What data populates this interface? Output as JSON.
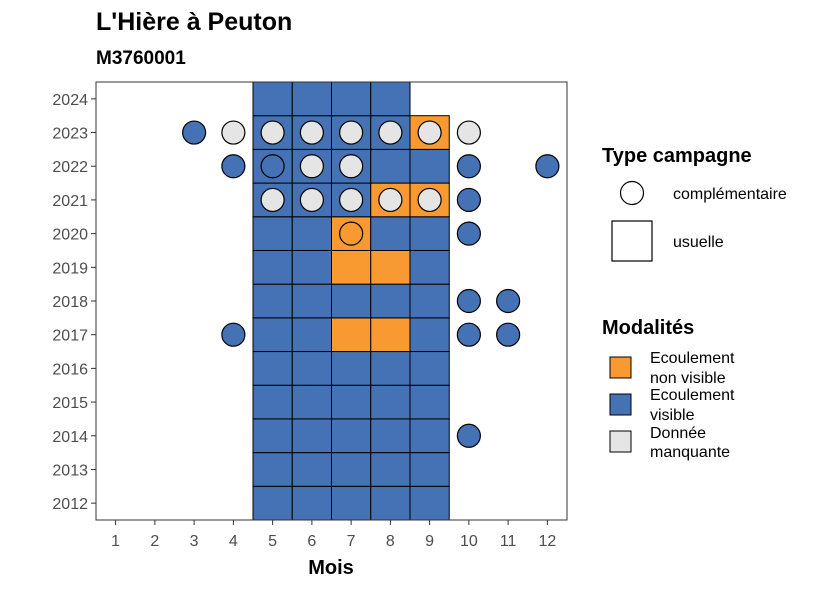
{
  "chart_data": {
    "type": "heatmap",
    "title": "L'Hière à Peuton",
    "subtitle": "M3760001",
    "xlabel": "Mois",
    "ylabel": "",
    "x_ticks": [
      "1",
      "2",
      "3",
      "4",
      "5",
      "6",
      "7",
      "8",
      "9",
      "10",
      "11",
      "12"
    ],
    "y_ticks": [
      "2012",
      "2013",
      "2014",
      "2015",
      "2016",
      "2017",
      "2018",
      "2019",
      "2020",
      "2021",
      "2022",
      "2023",
      "2024"
    ],
    "xlim": [
      0.5,
      12.5
    ],
    "ylim": [
      2011.5,
      2024.5
    ],
    "grid": false,
    "legend_position": "right",
    "colors": {
      "Ecoulement non visible": "#f89a31",
      "Ecoulement visible": "#4472b4",
      "Donnée manquante": "#e5e5e5"
    },
    "legends": {
      "shape": {
        "title": "Type campagne",
        "items": [
          {
            "label": "complémentaire",
            "shape": "circle"
          },
          {
            "label": "usuelle",
            "shape": "square"
          }
        ]
      },
      "fill": {
        "title": "Modalités",
        "items": [
          {
            "label": "Ecoulement non visible",
            "lines": [
              "Ecoulement",
              "non visible"
            ],
            "color": "#f89a31"
          },
          {
            "label": "Ecoulement visible",
            "lines": [
              "Ecoulement",
              "visible"
            ],
            "color": "#4472b4"
          },
          {
            "label": "Donnée manquante",
            "lines": [
              "Donnée",
              "manquante"
            ],
            "color": "#e5e5e5"
          }
        ]
      }
    },
    "usuelle": [
      {
        "year": 2012,
        "month": 5,
        "modalite": "Ecoulement visible"
      },
      {
        "year": 2012,
        "month": 6,
        "modalite": "Ecoulement visible"
      },
      {
        "year": 2012,
        "month": 7,
        "modalite": "Ecoulement visible"
      },
      {
        "year": 2012,
        "month": 8,
        "modalite": "Ecoulement visible"
      },
      {
        "year": 2012,
        "month": 9,
        "modalite": "Ecoulement visible"
      },
      {
        "year": 2013,
        "month": 5,
        "modalite": "Ecoulement visible"
      },
      {
        "year": 2013,
        "month": 6,
        "modalite": "Ecoulement visible"
      },
      {
        "year": 2013,
        "month": 7,
        "modalite": "Ecoulement visible"
      },
      {
        "year": 2013,
        "month": 8,
        "modalite": "Ecoulement visible"
      },
      {
        "year": 2013,
        "month": 9,
        "modalite": "Ecoulement visible"
      },
      {
        "year": 2014,
        "month": 5,
        "modalite": "Ecoulement visible"
      },
      {
        "year": 2014,
        "month": 6,
        "modalite": "Ecoulement visible"
      },
      {
        "year": 2014,
        "month": 7,
        "modalite": "Ecoulement visible"
      },
      {
        "year": 2014,
        "month": 8,
        "modalite": "Ecoulement visible"
      },
      {
        "year": 2014,
        "month": 9,
        "modalite": "Ecoulement visible"
      },
      {
        "year": 2015,
        "month": 5,
        "modalite": "Ecoulement visible"
      },
      {
        "year": 2015,
        "month": 6,
        "modalite": "Ecoulement visible"
      },
      {
        "year": 2015,
        "month": 7,
        "modalite": "Ecoulement visible"
      },
      {
        "year": 2015,
        "month": 8,
        "modalite": "Ecoulement visible"
      },
      {
        "year": 2015,
        "month": 9,
        "modalite": "Ecoulement visible"
      },
      {
        "year": 2016,
        "month": 5,
        "modalite": "Ecoulement visible"
      },
      {
        "year": 2016,
        "month": 6,
        "modalite": "Ecoulement visible"
      },
      {
        "year": 2016,
        "month": 7,
        "modalite": "Ecoulement visible"
      },
      {
        "year": 2016,
        "month": 8,
        "modalite": "Ecoulement visible"
      },
      {
        "year": 2016,
        "month": 9,
        "modalite": "Ecoulement visible"
      },
      {
        "year": 2017,
        "month": 5,
        "modalite": "Ecoulement visible"
      },
      {
        "year": 2017,
        "month": 6,
        "modalite": "Ecoulement visible"
      },
      {
        "year": 2017,
        "month": 7,
        "modalite": "Ecoulement non visible"
      },
      {
        "year": 2017,
        "month": 8,
        "modalite": "Ecoulement non visible"
      },
      {
        "year": 2017,
        "month": 9,
        "modalite": "Ecoulement visible"
      },
      {
        "year": 2018,
        "month": 5,
        "modalite": "Ecoulement visible"
      },
      {
        "year": 2018,
        "month": 6,
        "modalite": "Ecoulement visible"
      },
      {
        "year": 2018,
        "month": 7,
        "modalite": "Ecoulement visible"
      },
      {
        "year": 2018,
        "month": 8,
        "modalite": "Ecoulement visible"
      },
      {
        "year": 2018,
        "month": 9,
        "modalite": "Ecoulement visible"
      },
      {
        "year": 2019,
        "month": 5,
        "modalite": "Ecoulement visible"
      },
      {
        "year": 2019,
        "month": 6,
        "modalite": "Ecoulement visible"
      },
      {
        "year": 2019,
        "month": 7,
        "modalite": "Ecoulement non visible"
      },
      {
        "year": 2019,
        "month": 8,
        "modalite": "Ecoulement non visible"
      },
      {
        "year": 2019,
        "month": 9,
        "modalite": "Ecoulement visible"
      },
      {
        "year": 2020,
        "month": 5,
        "modalite": "Ecoulement visible"
      },
      {
        "year": 2020,
        "month": 6,
        "modalite": "Ecoulement visible"
      },
      {
        "year": 2020,
        "month": 7,
        "modalite": "Ecoulement non visible"
      },
      {
        "year": 2020,
        "month": 8,
        "modalite": "Ecoulement visible"
      },
      {
        "year": 2020,
        "month": 9,
        "modalite": "Ecoulement visible"
      },
      {
        "year": 2021,
        "month": 5,
        "modalite": "Ecoulement visible"
      },
      {
        "year": 2021,
        "month": 6,
        "modalite": "Ecoulement visible"
      },
      {
        "year": 2021,
        "month": 7,
        "modalite": "Ecoulement visible"
      },
      {
        "year": 2021,
        "month": 8,
        "modalite": "Ecoulement non visible"
      },
      {
        "year": 2021,
        "month": 9,
        "modalite": "Ecoulement non visible"
      },
      {
        "year": 2022,
        "month": 5,
        "modalite": "Ecoulement visible"
      },
      {
        "year": 2022,
        "month": 6,
        "modalite": "Ecoulement visible"
      },
      {
        "year": 2022,
        "month": 7,
        "modalite": "Ecoulement visible"
      },
      {
        "year": 2022,
        "month": 8,
        "modalite": "Ecoulement visible"
      },
      {
        "year": 2022,
        "month": 9,
        "modalite": "Ecoulement visible"
      },
      {
        "year": 2023,
        "month": 5,
        "modalite": "Ecoulement visible"
      },
      {
        "year": 2023,
        "month": 6,
        "modalite": "Ecoulement visible"
      },
      {
        "year": 2023,
        "month": 7,
        "modalite": "Ecoulement visible"
      },
      {
        "year": 2023,
        "month": 8,
        "modalite": "Ecoulement visible"
      },
      {
        "year": 2023,
        "month": 9,
        "modalite": "Ecoulement non visible"
      },
      {
        "year": 2024,
        "month": 5,
        "modalite": "Ecoulement visible"
      },
      {
        "year": 2024,
        "month": 6,
        "modalite": "Ecoulement visible"
      },
      {
        "year": 2024,
        "month": 7,
        "modalite": "Ecoulement visible"
      },
      {
        "year": 2024,
        "month": 8,
        "modalite": "Ecoulement visible"
      }
    ],
    "complementaire": [
      {
        "year": 2014,
        "month": 10,
        "modalite": "Ecoulement visible"
      },
      {
        "year": 2017,
        "month": 4,
        "modalite": "Ecoulement visible"
      },
      {
        "year": 2017,
        "month": 10,
        "modalite": "Ecoulement visible"
      },
      {
        "year": 2017,
        "month": 11,
        "modalite": "Ecoulement visible"
      },
      {
        "year": 2018,
        "month": 10,
        "modalite": "Ecoulement visible"
      },
      {
        "year": 2018,
        "month": 11,
        "modalite": "Ecoulement visible"
      },
      {
        "year": 2020,
        "month": 7,
        "modalite": "Ecoulement non visible"
      },
      {
        "year": 2020,
        "month": 10,
        "modalite": "Ecoulement visible"
      },
      {
        "year": 2021,
        "month": 5,
        "modalite": "Donnée manquante"
      },
      {
        "year": 2021,
        "month": 6,
        "modalite": "Donnée manquante"
      },
      {
        "year": 2021,
        "month": 7,
        "modalite": "Donnée manquante"
      },
      {
        "year": 2021,
        "month": 8,
        "modalite": "Donnée manquante"
      },
      {
        "year": 2021,
        "month": 9,
        "modalite": "Donnée manquante"
      },
      {
        "year": 2021,
        "month": 10,
        "modalite": "Ecoulement visible"
      },
      {
        "year": 2022,
        "month": 4,
        "modalite": "Ecoulement visible"
      },
      {
        "year": 2022,
        "month": 5,
        "modalite": "Ecoulement visible"
      },
      {
        "year": 2022,
        "month": 6,
        "modalite": "Donnée manquante"
      },
      {
        "year": 2022,
        "month": 7,
        "modalite": "Donnée manquante"
      },
      {
        "year": 2022,
        "month": 10,
        "modalite": "Ecoulement visible"
      },
      {
        "year": 2022,
        "month": 12,
        "modalite": "Ecoulement visible"
      },
      {
        "year": 2023,
        "month": 3,
        "modalite": "Ecoulement visible"
      },
      {
        "year": 2023,
        "month": 4,
        "modalite": "Donnée manquante"
      },
      {
        "year": 2023,
        "month": 5,
        "modalite": "Donnée manquante"
      },
      {
        "year": 2023,
        "month": 6,
        "modalite": "Donnée manquante"
      },
      {
        "year": 2023,
        "month": 7,
        "modalite": "Donnée manquante"
      },
      {
        "year": 2023,
        "month": 8,
        "modalite": "Donnée manquante"
      },
      {
        "year": 2023,
        "month": 9,
        "modalite": "Donnée manquante"
      },
      {
        "year": 2023,
        "month": 10,
        "modalite": "Donnée manquante"
      }
    ]
  }
}
